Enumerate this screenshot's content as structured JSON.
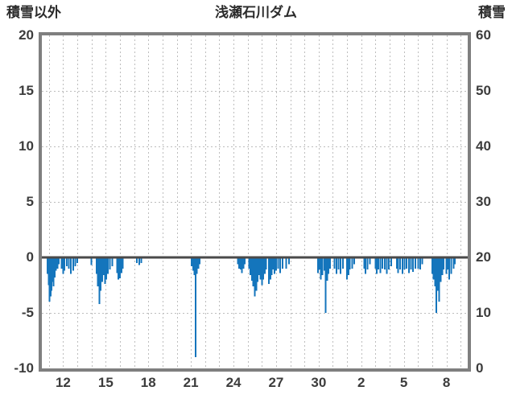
{
  "header": {
    "left_axis_title": "積雪以外",
    "title": "浅瀬石川ダム",
    "right_axis_title": "積雪"
  },
  "chart_data": {
    "type": "bar",
    "title": "浅瀬石川ダム",
    "left_axis": {
      "label": "積雪以外",
      "ticks": [
        20,
        15,
        10,
        5,
        0,
        -5,
        -10
      ],
      "range": [
        -10,
        20
      ]
    },
    "right_axis": {
      "label": "積雪",
      "ticks": [
        60,
        50,
        40,
        30,
        20,
        10,
        0
      ],
      "range": [
        0,
        60
      ]
    },
    "x_axis": {
      "tick_labels": [
        "12",
        "15",
        "18",
        "21",
        "24",
        "27",
        "30",
        "2",
        "5",
        "8"
      ],
      "tick_days": [
        12,
        15,
        18,
        21,
        24,
        27,
        30,
        33,
        36,
        39
      ],
      "domain": [
        10.5,
        40.5
      ],
      "grid_step_days": 1
    },
    "grid": true,
    "zero_line_value": 0,
    "bar_color": "#1475bc",
    "frame_color": "#7f7f7f",
    "grid_color": "#bdbdbd",
    "zero_line_color": "#4a4a4a",
    "bars": [
      [
        10.9,
        -1.5
      ],
      [
        10.97,
        -2.5
      ],
      [
        11.04,
        -4.0
      ],
      [
        11.11,
        -3.5
      ],
      [
        11.18,
        -3.0
      ],
      [
        11.25,
        -2.2
      ],
      [
        11.32,
        -2.6
      ],
      [
        11.4,
        -1.8
      ],
      [
        11.5,
        -1.2
      ],
      [
        11.6,
        -1.0
      ],
      [
        11.7,
        -0.6
      ],
      [
        11.9,
        -1.0
      ],
      [
        12.0,
        -1.5
      ],
      [
        12.1,
        -1.2
      ],
      [
        12.25,
        -0.8
      ],
      [
        12.4,
        -1.0
      ],
      [
        12.55,
        -1.5
      ],
      [
        12.7,
        -1.2
      ],
      [
        12.85,
        -0.8
      ],
      [
        13.0,
        -0.5
      ],
      [
        14.0,
        -0.7
      ],
      [
        14.35,
        -1.5
      ],
      [
        14.45,
        -2.6
      ],
      [
        14.55,
        -4.2
      ],
      [
        14.65,
        -3.0
      ],
      [
        14.75,
        -2.2
      ],
      [
        14.85,
        -1.6
      ],
      [
        14.95,
        -2.4
      ],
      [
        15.05,
        -2.0
      ],
      [
        15.15,
        -1.5
      ],
      [
        15.3,
        -1.1
      ],
      [
        15.45,
        -0.8
      ],
      [
        15.8,
        -1.4
      ],
      [
        15.9,
        -2.0
      ],
      [
        16.0,
        -1.9
      ],
      [
        16.1,
        -1.4
      ],
      [
        16.2,
        -1.0
      ],
      [
        17.2,
        -0.5
      ],
      [
        17.35,
        -0.7
      ],
      [
        17.5,
        -0.5
      ],
      [
        21.05,
        -0.8
      ],
      [
        21.15,
        -1.2
      ],
      [
        21.25,
        -1.6
      ],
      [
        21.33,
        -9.0
      ],
      [
        21.42,
        -1.5
      ],
      [
        21.52,
        -1.0
      ],
      [
        21.62,
        -0.6
      ],
      [
        24.3,
        -0.6
      ],
      [
        24.4,
        -1.0
      ],
      [
        24.5,
        -1.1
      ],
      [
        24.6,
        -1.4
      ],
      [
        24.7,
        -1.0
      ],
      [
        24.8,
        -0.6
      ],
      [
        25.1,
        -1.0
      ],
      [
        25.2,
        -1.6
      ],
      [
        25.3,
        -2.1
      ],
      [
        25.4,
        -2.6
      ],
      [
        25.5,
        -3.5
      ],
      [
        25.6,
        -3.0
      ],
      [
        25.7,
        -2.2
      ],
      [
        25.8,
        -1.6
      ],
      [
        25.9,
        -2.0
      ],
      [
        26.0,
        -2.5
      ],
      [
        26.1,
        -2.0
      ],
      [
        26.2,
        -1.5
      ],
      [
        26.3,
        -1.1
      ],
      [
        26.5,
        -2.4
      ],
      [
        26.6,
        -2.0
      ],
      [
        26.7,
        -1.6
      ],
      [
        26.8,
        -1.1
      ],
      [
        26.9,
        -1.5
      ],
      [
        27.0,
        -1.2
      ],
      [
        27.15,
        -1.0
      ],
      [
        27.3,
        -1.4
      ],
      [
        27.45,
        -1.0
      ],
      [
        27.7,
        -1.0
      ],
      [
        27.9,
        -0.6
      ],
      [
        29.95,
        -1.4
      ],
      [
        30.05,
        -1.1
      ],
      [
        30.15,
        -2.0
      ],
      [
        30.25,
        -1.6
      ],
      [
        30.4,
        -1.2
      ],
      [
        30.5,
        -5.0
      ],
      [
        30.6,
        -2.1
      ],
      [
        30.7,
        -1.5
      ],
      [
        30.8,
        -1.0
      ],
      [
        31.1,
        -1.0
      ],
      [
        31.25,
        -1.5
      ],
      [
        31.4,
        -1.1
      ],
      [
        31.55,
        -1.5
      ],
      [
        31.7,
        -1.0
      ],
      [
        32.0,
        -2.0
      ],
      [
        32.1,
        -1.6
      ],
      [
        32.2,
        -1.1
      ],
      [
        32.35,
        -1.0
      ],
      [
        32.5,
        -0.6
      ],
      [
        33.2,
        -1.0
      ],
      [
        33.3,
        -1.5
      ],
      [
        33.45,
        -1.1
      ],
      [
        33.6,
        -0.6
      ],
      [
        34.0,
        -1.0
      ],
      [
        34.1,
        -1.5
      ],
      [
        34.2,
        -1.1
      ],
      [
        34.35,
        -1.4
      ],
      [
        34.5,
        -1.0
      ],
      [
        34.65,
        -1.1
      ],
      [
        34.8,
        -1.5
      ],
      [
        34.95,
        -1.1
      ],
      [
        35.1,
        -0.8
      ],
      [
        35.5,
        -1.0
      ],
      [
        35.6,
        -1.4
      ],
      [
        35.75,
        -1.1
      ],
      [
        35.9,
        -1.5
      ],
      [
        36.05,
        -1.1
      ],
      [
        36.2,
        -1.0
      ],
      [
        36.35,
        -1.4
      ],
      [
        36.5,
        -1.1
      ],
      [
        36.65,
        -1.3
      ],
      [
        36.8,
        -1.0
      ],
      [
        37.0,
        -1.0
      ],
      [
        37.15,
        -1.1
      ],
      [
        37.3,
        -0.6
      ],
      [
        38.0,
        -1.5
      ],
      [
        38.1,
        -2.0
      ],
      [
        38.2,
        -2.6
      ],
      [
        38.3,
        -5.0
      ],
      [
        38.4,
        -3.0
      ],
      [
        38.5,
        -4.0
      ],
      [
        38.6,
        -2.2
      ],
      [
        38.7,
        -1.6
      ],
      [
        38.8,
        -1.1
      ],
      [
        39.0,
        -1.5
      ],
      [
        39.1,
        -1.1
      ],
      [
        39.2,
        -2.0
      ],
      [
        39.35,
        -1.5
      ],
      [
        39.5,
        -1.0
      ],
      [
        39.6,
        -0.6
      ]
    ]
  }
}
